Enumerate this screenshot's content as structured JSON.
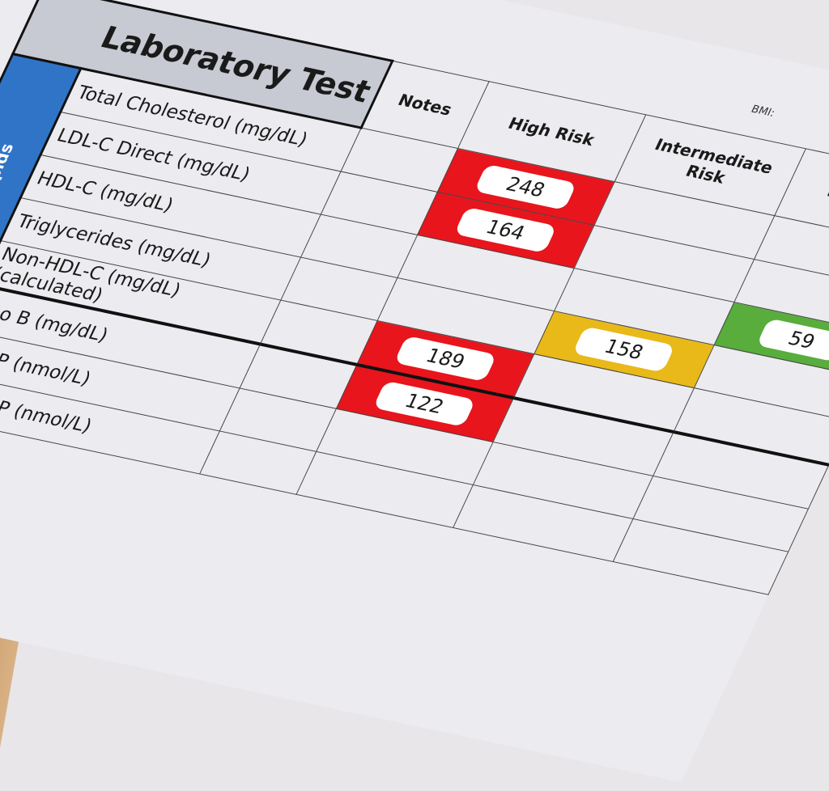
{
  "header": {
    "title": "Laboratory Test",
    "bmi_label": "BMI:",
    "columns": [
      "Notes",
      "High Risk",
      "Intermediate Risk",
      "Low Risk"
    ]
  },
  "sections": [
    {
      "category": "Lipids",
      "rows": [
        {
          "test": "Total Cholesterol (mg/dL)",
          "high": "248"
        },
        {
          "test": "LDL-C Direct (mg/dL)",
          "high": "164"
        },
        {
          "test": "HDL-C (mg/dL)",
          "low": "59"
        },
        {
          "test": "Triglycerides (mg/dL)",
          "intermediate": "158"
        },
        {
          "test": "Non-HDL-C (mg/dL) (calculated)",
          "high": "189"
        }
      ]
    },
    {
      "rows": [
        {
          "test": "Apo B (mg/dL)",
          "high": "122"
        },
        {
          "test": "LDL-P (nmol/L)"
        },
        {
          "test": "sdLDL-P (nmol/L)"
        }
      ]
    }
  ],
  "colors": {
    "high": "#e8151d",
    "intermediate": "#e8b918",
    "low": "#58ad3c",
    "category": "#2f74c6"
  }
}
